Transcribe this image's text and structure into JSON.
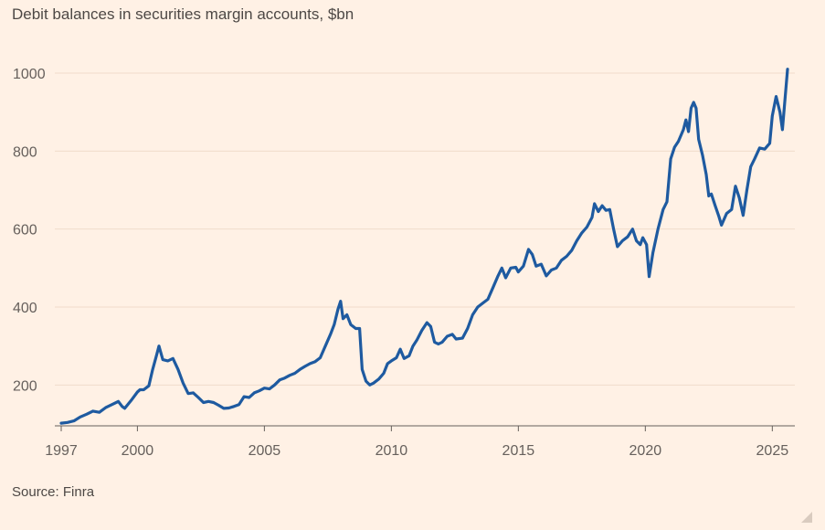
{
  "header": {
    "title": "Debit balances in securities margin accounts, $bn"
  },
  "footer": {
    "source": "Source: Finra"
  },
  "colors": {
    "background": "#fff1e5",
    "line": "#1e5aa0",
    "grid": "#f0dccb",
    "text": "#66605c"
  },
  "icons": {
    "corner": "resize-grip-icon"
  },
  "chart_data": {
    "type": "line",
    "title": "Debit balances in securities margin accounts, $bn",
    "xlabel": "",
    "ylabel": "",
    "xlim": [
      1997,
      2025.6
    ],
    "ylim": [
      100,
      1000
    ],
    "grid": true,
    "x_ticks": [
      "1997",
      "2000",
      "2005",
      "2010",
      "2015",
      "2020",
      "2025"
    ],
    "y_ticks": [
      "200",
      "400",
      "600",
      "800",
      "1000"
    ],
    "series": [
      {
        "name": "",
        "color": "#1e5aa0",
        "points": [
          [
            1997.0,
            102
          ],
          [
            1997.25,
            104
          ],
          [
            1997.5,
            108
          ],
          [
            1997.75,
            118
          ],
          [
            1998.0,
            125
          ],
          [
            1998.25,
            133
          ],
          [
            1998.5,
            130
          ],
          [
            1998.75,
            142
          ],
          [
            1999.0,
            150
          ],
          [
            1999.25,
            158
          ],
          [
            1999.4,
            145
          ],
          [
            1999.5,
            140
          ],
          [
            1999.75,
            160
          ],
          [
            2000.0,
            182
          ],
          [
            2000.1,
            188
          ],
          [
            2000.25,
            188
          ],
          [
            2000.45,
            198
          ],
          [
            2000.6,
            240
          ],
          [
            2000.75,
            275
          ],
          [
            2000.85,
            300
          ],
          [
            2001.0,
            265
          ],
          [
            2001.2,
            262
          ],
          [
            2001.4,
            268
          ],
          [
            2001.6,
            240
          ],
          [
            2001.8,
            205
          ],
          [
            2002.0,
            178
          ],
          [
            2002.2,
            180
          ],
          [
            2002.4,
            168
          ],
          [
            2002.6,
            155
          ],
          [
            2002.8,
            158
          ],
          [
            2003.0,
            155
          ],
          [
            2003.2,
            148
          ],
          [
            2003.4,
            140
          ],
          [
            2003.6,
            141
          ],
          [
            2003.8,
            145
          ],
          [
            2004.0,
            150
          ],
          [
            2004.2,
            170
          ],
          [
            2004.4,
            168
          ],
          [
            2004.6,
            180
          ],
          [
            2004.8,
            185
          ],
          [
            2005.0,
            192
          ],
          [
            2005.2,
            190
          ],
          [
            2005.4,
            200
          ],
          [
            2005.6,
            213
          ],
          [
            2005.8,
            218
          ],
          [
            2006.0,
            225
          ],
          [
            2006.2,
            230
          ],
          [
            2006.4,
            240
          ],
          [
            2006.6,
            248
          ],
          [
            2006.8,
            255
          ],
          [
            2007.0,
            260
          ],
          [
            2007.2,
            270
          ],
          [
            2007.4,
            300
          ],
          [
            2007.6,
            330
          ],
          [
            2007.75,
            355
          ],
          [
            2007.9,
            395
          ],
          [
            2008.0,
            415
          ],
          [
            2008.1,
            370
          ],
          [
            2008.25,
            380
          ],
          [
            2008.4,
            355
          ],
          [
            2008.6,
            345
          ],
          [
            2008.75,
            345
          ],
          [
            2008.85,
            240
          ],
          [
            2009.0,
            210
          ],
          [
            2009.15,
            200
          ],
          [
            2009.3,
            205
          ],
          [
            2009.5,
            215
          ],
          [
            2009.7,
            230
          ],
          [
            2009.85,
            255
          ],
          [
            2010.0,
            262
          ],
          [
            2010.2,
            270
          ],
          [
            2010.35,
            292
          ],
          [
            2010.5,
            268
          ],
          [
            2010.7,
            275
          ],
          [
            2010.85,
            300
          ],
          [
            2011.0,
            315
          ],
          [
            2011.2,
            340
          ],
          [
            2011.4,
            360
          ],
          [
            2011.55,
            350
          ],
          [
            2011.7,
            310
          ],
          [
            2011.85,
            305
          ],
          [
            2012.0,
            310
          ],
          [
            2012.2,
            325
          ],
          [
            2012.4,
            330
          ],
          [
            2012.55,
            318
          ],
          [
            2012.8,
            320
          ],
          [
            2013.0,
            345
          ],
          [
            2013.2,
            380
          ],
          [
            2013.4,
            400
          ],
          [
            2013.6,
            410
          ],
          [
            2013.8,
            420
          ],
          [
            2014.0,
            450
          ],
          [
            2014.2,
            480
          ],
          [
            2014.35,
            500
          ],
          [
            2014.5,
            475
          ],
          [
            2014.7,
            500
          ],
          [
            2014.9,
            502
          ],
          [
            2015.0,
            490
          ],
          [
            2015.2,
            505
          ],
          [
            2015.4,
            548
          ],
          [
            2015.55,
            535
          ],
          [
            2015.7,
            505
          ],
          [
            2015.9,
            510
          ],
          [
            2016.1,
            480
          ],
          [
            2016.3,
            495
          ],
          [
            2016.5,
            500
          ],
          [
            2016.7,
            520
          ],
          [
            2016.9,
            530
          ],
          [
            2017.1,
            545
          ],
          [
            2017.3,
            570
          ],
          [
            2017.5,
            590
          ],
          [
            2017.7,
            605
          ],
          [
            2017.9,
            630
          ],
          [
            2018.0,
            665
          ],
          [
            2018.15,
            645
          ],
          [
            2018.3,
            660
          ],
          [
            2018.45,
            648
          ],
          [
            2018.6,
            650
          ],
          [
            2018.75,
            600
          ],
          [
            2018.9,
            555
          ],
          [
            2019.1,
            570
          ],
          [
            2019.3,
            580
          ],
          [
            2019.5,
            600
          ],
          [
            2019.65,
            570
          ],
          [
            2019.8,
            560
          ],
          [
            2019.9,
            578
          ],
          [
            2020.05,
            560
          ],
          [
            2020.15,
            478
          ],
          [
            2020.3,
            540
          ],
          [
            2020.5,
            600
          ],
          [
            2020.7,
            650
          ],
          [
            2020.85,
            670
          ],
          [
            2021.0,
            780
          ],
          [
            2021.15,
            810
          ],
          [
            2021.3,
            825
          ],
          [
            2021.5,
            855
          ],
          [
            2021.6,
            880
          ],
          [
            2021.7,
            850
          ],
          [
            2021.8,
            910
          ],
          [
            2021.9,
            925
          ],
          [
            2022.0,
            910
          ],
          [
            2022.1,
            830
          ],
          [
            2022.25,
            790
          ],
          [
            2022.4,
            740
          ],
          [
            2022.5,
            685
          ],
          [
            2022.6,
            690
          ],
          [
            2022.75,
            660
          ],
          [
            2022.9,
            632
          ],
          [
            2023.0,
            610
          ],
          [
            2023.2,
            640
          ],
          [
            2023.4,
            650
          ],
          [
            2023.55,
            710
          ],
          [
            2023.7,
            680
          ],
          [
            2023.85,
            635
          ],
          [
            2024.0,
            700
          ],
          [
            2024.15,
            760
          ],
          [
            2024.3,
            780
          ],
          [
            2024.5,
            808
          ],
          [
            2024.7,
            805
          ],
          [
            2024.9,
            820
          ],
          [
            2025.0,
            890
          ],
          [
            2025.15,
            940
          ],
          [
            2025.3,
            900
          ],
          [
            2025.4,
            855
          ],
          [
            2025.6,
            1010
          ]
        ]
      }
    ]
  }
}
